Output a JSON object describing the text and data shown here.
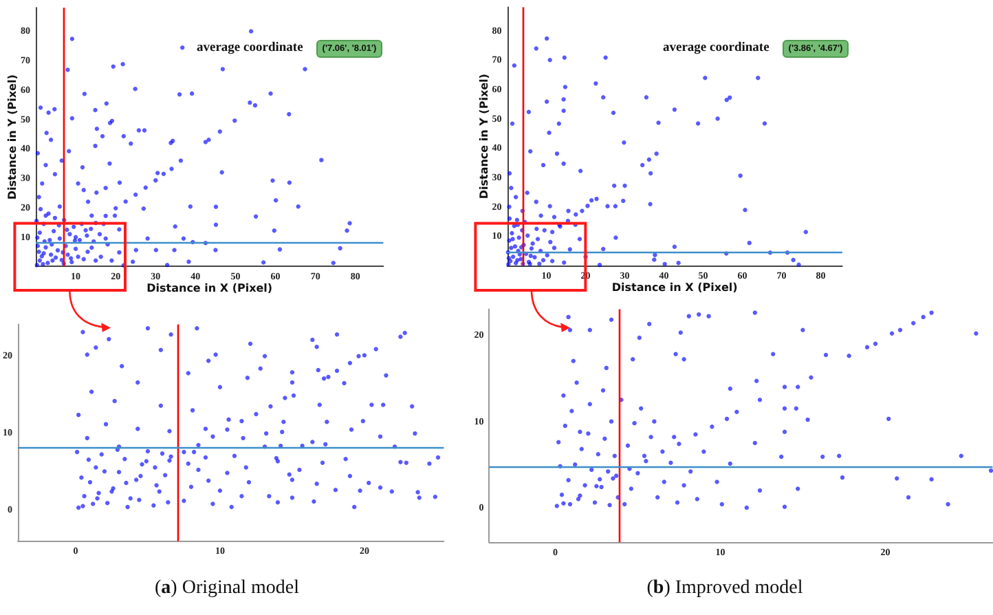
{
  "chart_data": [
    {
      "type": "scatter",
      "xlabel": "Distance in X (Pixel)",
      "ylabel": "Distance in Y (Pixel)",
      "annotations": [
        "average coordinate",
        "('7.06', '8.01')"
      ],
      "xlim": [
        0,
        87
      ],
      "ylim": [
        0,
        88
      ],
      "xticks": [
        10,
        20,
        30,
        40,
        50,
        60,
        70,
        80
      ],
      "yticks": [
        10,
        20,
        30,
        40,
        50,
        60,
        70,
        80
      ],
      "grid": false,
      "marker": "circle",
      "ref_lines": [
        {
          "axis": "x",
          "value": 7.06,
          "color": "#ff0000"
        },
        {
          "axis": "y",
          "value": 8.01,
          "color": "#3d8ec9"
        }
      ],
      "series": [
        {
          "color": "#0000ff",
          "x": [
            9.1,
            53.9,
            36.7,
            46.8,
            67.4,
            8.0,
            19.4,
            21.8,
            12.2,
            24.9,
            36.0,
            39.1,
            58.8,
            53.6,
            54.9,
            17.7,
            14.9,
            1.2,
            4.7,
            3.2,
            63.4,
            49.8,
            19.1,
            18.6,
            9.1,
            25.8,
            27.2,
            2.7,
            46.1,
            15.3,
            16.7,
            22.0,
            43.3,
            42.5,
            33.8,
            34.3,
            14.9,
            23.8,
            3.8,
            36.3,
            71.5,
            46.6,
            30.5,
            59.3,
            63.5,
            60.1,
            65.7,
            38.7,
            27.0,
            45.1,
            55.1,
            78.6,
            77.9,
            59.7,
            45.1,
            34.9,
            37.0,
            39.3,
            42.5,
            28.0,
            45.0,
            61.1,
            76.2,
            57.0,
            74.5,
            38.3,
            32.9,
            24.3,
            25.1,
            30.1,
            34.7,
            10,
            12.5,
            15,
            17.5,
            20,
            22.5,
            25,
            27.5,
            30,
            32,
            34,
            0.8,
            1.6,
            4.8,
            2.5,
            8.3,
            10.6,
            13.1,
            15.2,
            17.5,
            11.7,
            6.0,
            2.5,
            7.1,
            14.0,
            19.8,
            20.9,
            17.5,
            14.0,
            10.6,
            16.3,
            20.9,
            22.0,
            0.5,
            6.5,
            18.5,
            12.0,
            21.0,
            0.3,
            1.0,
            2.0,
            3.0,
            4.0,
            5.0,
            6.0,
            1.0,
            2.0,
            3.2,
            0.5,
            8.0,
            9.0,
            10.0,
            12.0,
            11.0,
            13.0,
            15.0,
            7.0,
            1.5,
            2.5,
            3.5,
            4.5,
            5.5,
            6.5,
            7.5,
            8.5,
            9.5,
            0.2,
            1.2,
            4.2,
            5.8,
            7.8,
            11.5,
            12.8,
            14.5,
            16.0,
            18.0,
            19.0,
            17.0,
            3.8,
            2.2,
            0.8,
            6.8,
            9.8,
            13.8,
            4.8,
            0.4,
            1.8,
            8.8
          ],
          "values": [
            77.4,
            80.0,
            74.4,
            67.1,
            67.1,
            66.9,
            68.0,
            68.8,
            58.7,
            60.4,
            58.5,
            58.8,
            58.8,
            55.7,
            54.8,
            55.4,
            53.2,
            54.0,
            53.5,
            52.3,
            51.8,
            49.6,
            49.5,
            48.8,
            50.4,
            46.3,
            46.3,
            45.4,
            45.9,
            46.8,
            44.3,
            44.3,
            43.1,
            42.3,
            42.0,
            42.7,
            41.0,
            41.8,
            43.1,
            36.0,
            36.2,
            32.0,
            31.8,
            29.2,
            28.5,
            22.5,
            20.4,
            20.4,
            19.7,
            20.3,
            17.0,
            14.7,
            12.2,
            12.2,
            14.2,
            13.6,
            9.5,
            8.3,
            8.0,
            9.5,
            5.6,
            5.8,
            6.2,
            1.4,
            1.2,
            1.6,
            0.5,
            1.6,
            5.6,
            5.6,
            5.6,
            10,
            12.3,
            14.8,
            17.2,
            19.8,
            22.1,
            24.4,
            26.8,
            29.3,
            31.5,
            33.2,
            23.6,
            28.2,
            31.4,
            34.5,
            39.2,
            28.2,
            22.0,
            25.1,
            26.7,
            33.7,
            20.4,
            17.3,
            15.8,
            17.3,
            17.3,
            12.6,
            9.5,
            6.4,
            3.3,
            3.3,
            4.8,
            0.4,
            38.5,
            36.0,
            35.0,
            26.0,
            28.5,
            0.5,
            2.0,
            4.5,
            1.2,
            7.5,
            3.0,
            9.5,
            11.5,
            14.5,
            18.0,
            7.0,
            4.0,
            1.5,
            6.0,
            2.5,
            9.0,
            5.0,
            2.0,
            1.0,
            3.5,
            6.5,
            9.0,
            12.0,
            5.5,
            2.2,
            7.0,
            11.0,
            13.5,
            15.5,
            19.5,
            2.0,
            14.0,
            12.5,
            14.5,
            10.5,
            8.5,
            11.0,
            7.5,
            2.0,
            14.5,
            4.0,
            8.5,
            5.0,
            4.8,
            8.8,
            12.8,
            16.5,
            9.8,
            0.8,
            2.8
          ]
        }
      ]
    },
    {
      "type": "scatter",
      "annotations": [
        "(a) Original model"
      ],
      "xlim": [
        -4,
        25.5
      ],
      "ylim": [
        -4,
        24
      ],
      "xticks": [
        0,
        10,
        20
      ],
      "yticks": [
        0,
        10,
        20
      ],
      "grid": false,
      "marker": "circle",
      "ref_lines": [
        {
          "axis": "x",
          "value": 7.06,
          "color": "#ff0000"
        },
        {
          "axis": "y",
          "value": 8.01,
          "color": "#3d8ec9"
        }
      ],
      "series": [
        {
          "color": "#0000ff",
          "x": [
            13.1,
            12.8,
            15.0,
            15.0,
            16.4,
            16.7,
            18.1,
            16.8,
            17.2,
            17.5,
            18.1,
            19.6,
            20.8,
            22.5,
            22.8,
            21.5,
            18.6,
            16.9,
            15.1,
            14.4,
            13.2,
            14.3,
            17.4,
            19.1,
            19.9,
            20.5,
            21.3,
            23.3,
            23.5,
            21.1,
            16.4,
            17.3,
            15.7,
            14.2,
            13.1,
            13.9,
            14.0,
            17.1,
            18.7,
            16.7,
            18.0,
            19.0,
            20.3,
            21.1,
            21.9,
            19.7,
            19.3,
            16.5,
            14.8,
            15.0,
            15.5,
            14.0,
            15.0,
            13.4,
            23.8,
            24.9,
            23.7,
            24.5,
            25.1,
            22.5,
            22.9,
            22.1,
            0.5,
            1.5,
            2.5,
            3.5,
            4.5,
            5.5,
            6.5,
            7.5,
            8.5,
            9.5,
            10.5,
            11.5,
            12.5,
            13.5,
            14.5,
            19.0,
            20.0,
            0.5,
            2.3,
            5.0,
            5.9,
            8.4,
            6.6,
            9.2,
            9.7,
            12.1,
            3.2,
            1.4,
            0.8,
            4.3,
            7.8,
            10.0,
            11.9,
            1.1,
            2.7,
            5.9,
            8.1,
            10.6,
            0.2,
            2.1,
            4.3,
            6.5,
            9.0,
            11.6,
            0.8,
            3.0,
            0.2,
            0.6,
            1.0,
            1.4,
            1.8,
            2.2,
            2.6,
            3.0,
            3.4,
            3.8,
            4.2,
            4.6,
            5.0,
            5.4,
            5.8,
            6.2,
            6.6,
            0.4,
            0.9,
            1.6,
            2.0,
            2.9,
            3.6,
            4.4,
            4.9,
            5.6,
            6.0,
            6.4,
            0.1,
            1.2,
            7.5,
            8.0,
            8.5,
            9.0,
            9.5,
            10.0,
            10.5,
            11.0,
            11.5,
            12.0,
            7.8,
            9.2,
            10.8,
            8.2,
            11.8
          ],
          "values": [
            19.9,
            18.3,
            17.8,
            16.5,
            22.0,
            21.1,
            22.7,
            18.1,
            17.0,
            17.2,
            18.0,
            19.9,
            20.8,
            22.4,
            22.9,
            17.4,
            16.4,
            13.6,
            14.8,
            11.4,
            9.9,
            10.1,
            11.4,
            10.4,
            11.5,
            13.6,
            13.6,
            13.4,
            9.9,
            9.5,
            8.8,
            8.5,
            8.3,
            8.3,
            8.2,
            6.7,
            6.3,
            6.1,
            6.6,
            3.4,
            2.6,
            4.4,
            3.5,
            2.9,
            2.4,
            2.5,
            0.4,
            1.1,
            4.6,
            3.9,
            5.2,
            1.0,
            1.6,
            1.8,
            1.6,
            1.7,
            2.3,
            6.0,
            6.8,
            6.2,
            6.1,
            8.2,
            0.5,
            1.5,
            2.4,
            3.5,
            4.4,
            5.5,
            6.4,
            7.5,
            8.4,
            9.5,
            10.4,
            11.5,
            12.4,
            13.4,
            14.5,
            19.0,
            20.0,
            23.0,
            22.1,
            23.5,
            20.7,
            23.5,
            22.7,
            19.3,
            20.1,
            21.5,
            18.6,
            21.0,
            20.1,
            16.5,
            17.7,
            15.9,
            17.1,
            15.3,
            14.1,
            13.5,
            12.9,
            11.7,
            12.3,
            11.1,
            10.5,
            10.2,
            10.5,
            9.3,
            9.3,
            8.2,
            0.3,
            1.8,
            3.6,
            5.5,
            7.2,
            0.9,
            2.8,
            4.9,
            6.6,
            1.5,
            3.9,
            5.9,
            7.6,
            0.6,
            2.4,
            4.5,
            6.9,
            4.2,
            6.5,
            2.2,
            5.0,
            7.8,
            0.4,
            1.3,
            6.3,
            3.2,
            7.3,
            1.0,
            7.5,
            0.8,
            1.2,
            3.0,
            5.2,
            6.8,
            0.8,
            2.5,
            4.8,
            7.0,
            1.8,
            3.6,
            6.0,
            3.8,
            0.4,
            7.5,
            5.5
          ]
        }
      ]
    },
    {
      "type": "scatter",
      "xlabel": "Distance in X (Pixel)",
      "ylabel": "Distance in Y (Pixel)",
      "annotations": [
        "average coordinate",
        "('3.86', '4.67')"
      ],
      "xlim": [
        0,
        85.5
      ],
      "ylim": [
        0,
        88
      ],
      "xticks": [
        10,
        20,
        30,
        40,
        50,
        60,
        70,
        80
      ],
      "yticks": [
        10,
        20,
        30,
        40,
        50,
        60,
        70,
        80
      ],
      "grid": false,
      "marker": "circle",
      "ref_lines": [
        {
          "axis": "x",
          "value": 3.86,
          "color": "#ff0000"
        },
        {
          "axis": "y",
          "value": 4.67,
          "color": "#3d8ec9"
        }
      ],
      "series": [
        {
          "color": "#0000ff",
          "x": [
            10.1,
            7.4,
            1.8,
            10.9,
            14.6,
            25.1,
            50.5,
            64.0,
            22.6,
            14.8,
            24.5,
            35.5,
            10.1,
            14.4,
            56.0,
            56.8,
            5.5,
            42.7,
            27.1,
            14.4,
            13.2,
            10.7,
            38.6,
            48.7,
            53.7,
            65.7,
            29.8,
            38.1,
            1.3,
            5.9,
            12.7,
            9.2,
            14.4,
            34.5,
            36.2,
            36.6,
            59.5,
            0.6,
            18.7,
            27.3,
            30.0,
            36.5,
            29.6,
            60.7,
            22.8,
            21.5,
            27.6,
            25.6,
            76.2,
            61.8,
            42.7,
            27.7,
            24.5,
            37.7,
            37.5,
            40.2,
            43.7,
            55.9,
            67.1,
            71.5,
            73.0,
            74.4,
            23.6,
            11.5,
            13.5,
            15.5,
            17.5,
            19.1,
            20.5,
            2.2,
            3.9,
            7.4,
            8.6,
            10.9,
            13.3,
            15.6,
            17.4,
            2.7,
            1.0,
            5.1,
            0.5,
            12.0,
            18.5,
            16.0,
            20.0,
            14.5,
            11.0,
            9.5,
            0.3,
            0.8,
            1.5,
            2.2,
            2.8,
            3.5,
            4.2,
            0.5,
            1.2,
            2.0,
            3.0,
            4.8,
            5.5,
            6.2,
            7.0,
            7.8,
            0.2,
            1.8,
            3.8,
            5.2,
            6.5,
            8.5,
            9.2,
            10.2,
            0.6,
            2.5,
            4.5,
            1.0,
            3.2,
            5.8,
            7.5,
            8.2,
            0.4,
            2.6,
            4.0,
            1.4,
            3.6,
            6.0,
            12.0,
            11.5
          ],
          "values": [
            77.3,
            73.9,
            68.1,
            70.0,
            70.8,
            70.8,
            63.9,
            63.9,
            62.0,
            60.8,
            57.3,
            57.3,
            55.8,
            56.6,
            56.4,
            57.2,
            52.3,
            53.1,
            52.0,
            52.7,
            48.3,
            45.2,
            48.6,
            48.4,
            50.0,
            48.4,
            41.9,
            38.1,
            48.3,
            38.9,
            38.1,
            34.2,
            34.7,
            34.2,
            36.1,
            31.4,
            30.6,
            31.4,
            32.2,
            27.2,
            27.2,
            20.9,
            22.0,
            18.9,
            22.7,
            22.2,
            20.2,
            20.2,
            11.4,
            7.7,
            6.4,
            9.5,
            5.6,
            3.6,
            2.0,
            0.5,
            0.9,
            4.1,
            4.4,
            4.4,
            1.9,
            0.3,
            0.2,
            11.4,
            13.3,
            15.2,
            17.4,
            18.6,
            20.3,
            23.3,
            18.6,
            21.7,
            17.0,
            20.2,
            13.9,
            18.6,
            13.9,
            13.9,
            26.4,
            24.8,
            20.0,
            16.5,
            9.0,
            5.5,
            3.0,
            1.0,
            8.0,
            12.0,
            0.4,
            1.5,
            3.0,
            0.8,
            5.0,
            2.2,
            7.0,
            8.5,
            11.0,
            6.5,
            9.5,
            4.0,
            1.2,
            5.8,
            2.8,
            9.0,
            4.5,
            13.5,
            12.0,
            10.2,
            7.5,
            5.0,
            1.8,
            3.5,
            16.0,
            15.5,
            14.8,
            6.0,
            3.8,
            0.5,
            12.5,
            0.6,
            2.5,
            1.8,
            0.6,
            9.0,
            6.2,
            3.3,
            6.0,
            1.5
          ]
        }
      ]
    },
    {
      "type": "scatter",
      "annotations": [
        "(b) Improved model"
      ],
      "xlim": [
        -4,
        26.5
      ],
      "ylim": [
        -4,
        23
      ],
      "xticks": [
        0,
        10,
        20
      ],
      "yticks": [
        0,
        10,
        20
      ],
      "grid": false,
      "marker": "circle",
      "ref_lines": [
        {
          "axis": "x",
          "value": 3.86,
          "color": "#ff0000"
        },
        {
          "axis": "y",
          "value": 4.67,
          "color": "#3d8ec9"
        }
      ],
      "series": [
        {
          "color": "#0000ff",
          "x": [
            25.5,
            22.3,
            22.8,
            21.7,
            20.9,
            20.4,
            19.4,
            18.9,
            17.8,
            16.4,
            15.0,
            13.2,
            12.1,
            9.3,
            8.7,
            8.1,
            7.6,
            7.3,
            7.8,
            5.7,
            5.1,
            3.4,
            2.1,
            0.9,
            0.8,
            3.1,
            4.7,
            15.5,
            14.7,
            13.9,
            12.2,
            10.6,
            11.0,
            12.4,
            13.9,
            14.6,
            15.3,
            20.2,
            13.9,
            12.1,
            13.7,
            16.2,
            17.2,
            17.4,
            20.7,
            22.8,
            24.6,
            26.4,
            21.4,
            23.8,
            13.9,
            14.7,
            12.4,
            11.6,
            10.1,
            10.6,
            9.8,
            0.5,
            1.5,
            2.5,
            3.5,
            4.5,
            5.5,
            6.5,
            7.5,
            8.5,
            9.5,
            10.4,
            0.1,
            0.4,
            0.8,
            1.2,
            1.6,
            2.0,
            2.4,
            2.8,
            3.2,
            3.6,
            0.2,
            0.6,
            1.0,
            1.4,
            1.8,
            2.2,
            2.6,
            3.0,
            3.4,
            3.8,
            0.3,
            0.9,
            1.5,
            2.1,
            2.7,
            3.3,
            3.7,
            0.5,
            1.3,
            2.9,
            4.2,
            4.6,
            5.0,
            5.4,
            5.8,
            6.2,
            6.6,
            7.0,
            7.4,
            7.8,
            4.4,
            4.8,
            5.2,
            6.0,
            7.2,
            8.2,
            8.6,
            9.0,
            4.0,
            1.1
          ],
          "values": [
            20.2,
            22.1,
            22.6,
            21.4,
            20.6,
            20.2,
            19.0,
            18.6,
            17.6,
            17.7,
            20.6,
            17.8,
            22.6,
            22.2,
            22.4,
            22.2,
            20.3,
            17.8,
            17.2,
            21.3,
            19.7,
            21.8,
            20.6,
            20.6,
            22.1,
            16.2,
            17.2,
            15.1,
            14.0,
            14.0,
            14.7,
            13.8,
            11.1,
            12.5,
            11.5,
            11.5,
            10.2,
            10.3,
            8.8,
            7.5,
            5.9,
            5.9,
            6.0,
            3.5,
            3.4,
            3.3,
            6.0,
            4.3,
            1.2,
            0.4,
            0.1,
            2.2,
            2.0,
            0.0,
            0.4,
            5.1,
            3.0,
            0.5,
            1.4,
            2.5,
            3.4,
            4.5,
            5.4,
            6.5,
            7.4,
            8.5,
            9.4,
            10.3,
            0.2,
            1.5,
            3.2,
            5.0,
            6.8,
            8.6,
            0.6,
            2.4,
            4.2,
            6.0,
            7.6,
            9.5,
            11.2,
            1.0,
            2.6,
            4.4,
            6.2,
            8.0,
            10.0,
            1.2,
            4.8,
            0.4,
            8.8,
            12.0,
            3.3,
            0.3,
            3.7,
            13.0,
            14.5,
            13.6,
            0.4,
            2.2,
            4.0,
            6.0,
            8.2,
            1.2,
            3.0,
            5.2,
            0.6,
            2.6,
            7.2,
            9.8,
            11.5,
            10.0,
            8.2,
            4.2,
            1.0,
            6.5,
            12.5,
            17.0
          ]
        }
      ]
    }
  ]
}
